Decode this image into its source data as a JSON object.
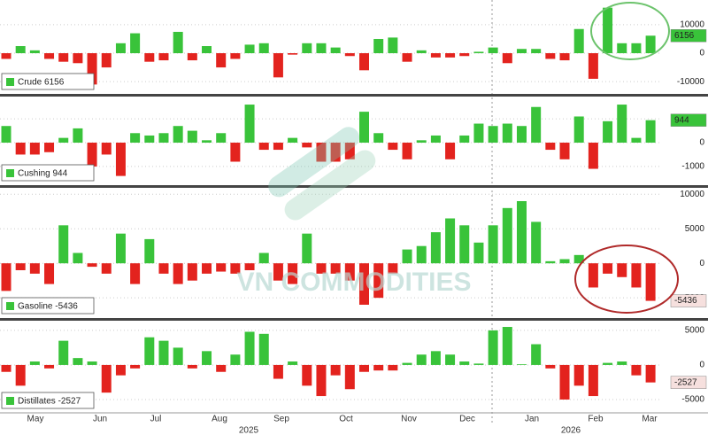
{
  "chart_data": [
    {
      "type": "bar",
      "legend": "Crude 6156",
      "last_label": "6156",
      "color_up": "#39c33a",
      "color_down": "#e3231e",
      "values": [
        -2000,
        2500,
        1000,
        -2000,
        -3000,
        -3500,
        -11000,
        -5000,
        3500,
        7000,
        -3000,
        -2500,
        7500,
        -2500,
        2500,
        -5000,
        -2000,
        3000,
        3500,
        -8500,
        -500,
        3500,
        3500,
        2000,
        -1000,
        -6000,
        5000,
        5500,
        -3000,
        1000,
        -1500,
        -1500,
        -1000,
        500,
        2000,
        -3500,
        1500,
        1500,
        -2000,
        -2500,
        8500,
        -9000,
        16000,
        3500,
        3500,
        6156
      ],
      "ylim": [
        -14000,
        18700
      ],
      "yticks": [
        -10000,
        0,
        10000
      ],
      "grid": true
    },
    {
      "type": "bar",
      "legend": "Cushing 944",
      "last_label": "944",
      "color_up": "#39c33a",
      "color_down": "#e3231e",
      "values": [
        700,
        -500,
        -500,
        -400,
        200,
        600,
        -1000,
        -500,
        -1400,
        400,
        300,
        400,
        700,
        500,
        100,
        400,
        -800,
        1600,
        -300,
        -300,
        200,
        -200,
        -800,
        -800,
        -700,
        1300,
        400,
        -300,
        -700,
        100,
        300,
        -700,
        300,
        800,
        700,
        800,
        700,
        1500,
        -300,
        -700,
        1100,
        -1100,
        900,
        1600,
        200,
        944
      ],
      "ylim": [
        -1750,
        1900
      ],
      "yticks": [
        -1000,
        0,
        1000
      ],
      "grid": true
    },
    {
      "type": "bar",
      "legend": "Gasoline -5436",
      "last_label": "-5436",
      "color_up": "#39c33a",
      "color_down": "#e3231e",
      "values": [
        -4000,
        -1000,
        -1500,
        -3000,
        5500,
        1500,
        -500,
        -1500,
        4300,
        -3000,
        3500,
        -1500,
        -3000,
        -2500,
        -1500,
        -1200,
        -1500,
        -1000,
        1500,
        -2500,
        -3000,
        4300,
        -1500,
        -1500,
        -2500,
        -6000,
        -5000,
        -1500,
        2000,
        2500,
        4500,
        6500,
        5500,
        3000,
        5500,
        8000,
        9000,
        6000,
        300,
        600,
        1200,
        -3500,
        -1500,
        -2000,
        -3500,
        -5436
      ],
      "ylim": [
        -7800,
        10800
      ],
      "yticks": [
        -5000,
        0,
        5000,
        10000
      ],
      "grid": true
    },
    {
      "type": "bar",
      "legend": "Distillates -2527",
      "last_label": "-2527",
      "color_up": "#39c33a",
      "color_down": "#e3231e",
      "values": [
        -1000,
        -3000,
        500,
        -500,
        3500,
        1000,
        500,
        -4000,
        -1500,
        -500,
        4000,
        3500,
        2500,
        -500,
        2000,
        -1000,
        1500,
        4800,
        4500,
        -2000,
        500,
        -3000,
        -4500,
        -1500,
        -3500,
        -1000,
        -800,
        -800,
        300,
        1500,
        2000,
        1500,
        500,
        200,
        5000,
        5500,
        100,
        3000,
        -500,
        -5000,
        -3000,
        -4500,
        300,
        500,
        -1500,
        -2527
      ],
      "ylim": [
        -6800,
        6400
      ],
      "yticks": [
        -5000,
        0,
        5000
      ],
      "grid": true
    }
  ],
  "x_axis": {
    "months": [
      "May",
      "Jun",
      "Jul",
      "Aug",
      "Sep",
      "Oct",
      "Nov",
      "Dec",
      "Jan",
      "Feb",
      "Mar"
    ],
    "years": [
      "2025",
      "2026"
    ]
  },
  "watermark": "VN COMMODITIES"
}
